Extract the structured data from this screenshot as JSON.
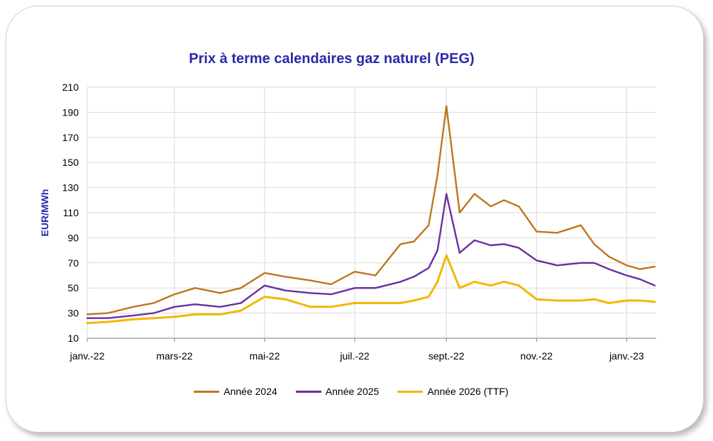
{
  "chart_data": {
    "type": "line",
    "title": "Prix à terme calendaires gaz naturel (PEG)",
    "xlabel": "",
    "ylabel": "EUR/MWh",
    "ylim": [
      10,
      210
    ],
    "y_ticks": [
      10,
      30,
      50,
      70,
      90,
      110,
      130,
      150,
      170,
      190,
      210
    ],
    "x_ticks": [
      "janv.-22",
      "mars-22",
      "mai-22",
      "juil.-22",
      "sept.-22",
      "nov.-22",
      "janv.-23"
    ],
    "x": [
      "2022-01-01",
      "2022-01-15",
      "2022-02-01",
      "2022-02-15",
      "2022-03-01",
      "2022-03-15",
      "2022-04-01",
      "2022-04-15",
      "2022-05-01",
      "2022-05-15",
      "2022-06-01",
      "2022-06-15",
      "2022-07-01",
      "2022-07-15",
      "2022-08-01",
      "2022-08-10",
      "2022-08-20",
      "2022-08-26",
      "2022-09-01",
      "2022-09-10",
      "2022-09-20",
      "2022-10-01",
      "2022-10-10",
      "2022-10-20",
      "2022-11-01",
      "2022-11-15",
      "2022-12-01",
      "2022-12-10",
      "2022-12-20",
      "2023-01-01",
      "2023-01-10",
      "2023-01-20"
    ],
    "grid": true,
    "legend_position": "bottom",
    "series": [
      {
        "name": "Année 2024",
        "color": "#c0761f",
        "values": [
          29,
          30,
          35,
          38,
          45,
          50,
          46,
          50,
          62,
          59,
          56,
          53,
          63,
          60,
          85,
          87,
          100,
          140,
          195,
          110,
          125,
          115,
          120,
          115,
          95,
          94,
          100,
          85,
          75,
          68,
          65,
          67
        ]
      },
      {
        "name": "Année 2025",
        "color": "#6a2fa0",
        "values": [
          26,
          26,
          28,
          30,
          35,
          37,
          35,
          38,
          52,
          48,
          46,
          45,
          50,
          50,
          55,
          59,
          66,
          80,
          125,
          78,
          88,
          84,
          85,
          82,
          72,
          68,
          70,
          70,
          65,
          60,
          57,
          52
        ]
      },
      {
        "name": "Année 2026 (TTF)",
        "color": "#f2b705",
        "values": [
          22,
          23,
          25,
          26,
          27,
          29,
          29,
          32,
          43,
          41,
          35,
          35,
          38,
          38,
          38,
          40,
          43,
          55,
          76,
          50,
          55,
          52,
          55,
          52,
          41,
          40,
          40,
          41,
          38,
          40,
          40,
          39
        ]
      }
    ]
  }
}
